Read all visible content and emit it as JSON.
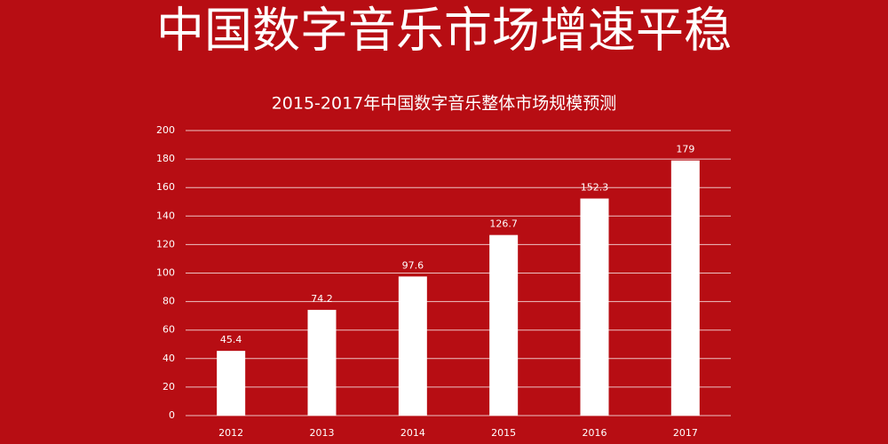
{
  "header": {
    "title": "中国数字音乐市场增速平稳"
  },
  "chart_data": {
    "type": "bar",
    "title": "2015-2017年中国数字音乐整体市场规模预测",
    "categories": [
      "2012",
      "2013",
      "2014",
      "2015",
      "2016",
      "2017"
    ],
    "values": [
      45.4,
      74.2,
      97.6,
      126.7,
      152.3,
      179
    ],
    "color": "#ffffff",
    "ylim": [
      0,
      200
    ],
    "yticks": [
      0,
      20,
      40,
      60,
      80,
      100,
      120,
      140,
      160,
      180,
      200
    ],
    "grid": true
  }
}
